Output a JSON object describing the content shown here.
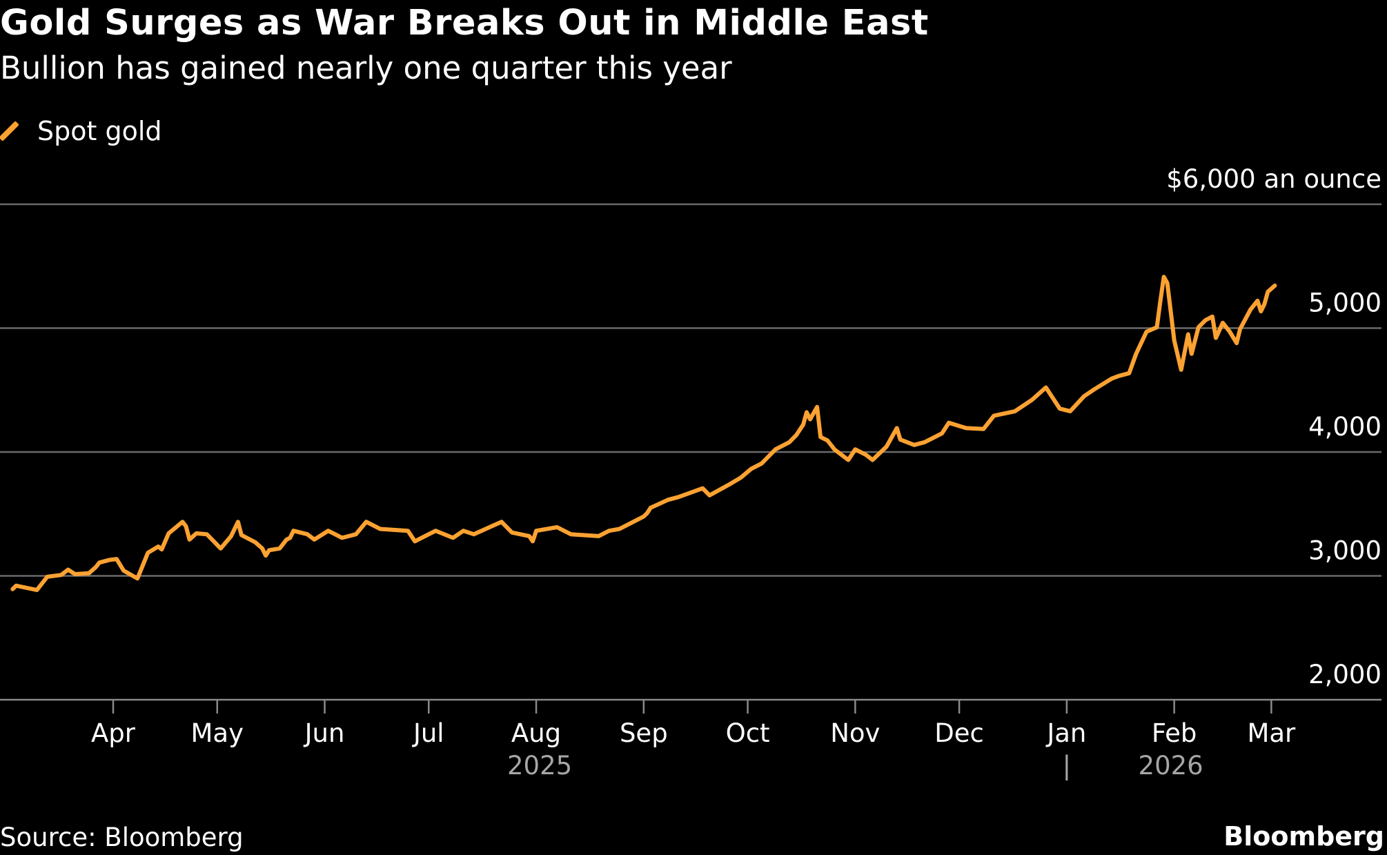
{
  "title": "Gold Surges as War Breaks Out in Middle East",
  "subtitle": "Bullion has gained nearly one quarter this year",
  "source": "Source: Bloomberg",
  "brand": "Bloomberg",
  "colors": {
    "background": "#000000",
    "series": "#FDA232",
    "grid": "#6b6b6b",
    "year_label": "#a6a6a6"
  },
  "chart_data": {
    "type": "line",
    "title": "Gold Surges as War Breaks Out in Middle East",
    "subtitle": "Bullion has gained nearly one quarter this year",
    "unit_label": "$6,000 an ounce",
    "ylim": [
      2000,
      6000
    ],
    "y_ticks": [
      {
        "value": 6000,
        "label": "$6,000 an ounce"
      },
      {
        "value": 5000,
        "label": "5,000"
      },
      {
        "value": 4000,
        "label": "4,000"
      },
      {
        "value": 3000,
        "label": "3,000"
      },
      {
        "value": 2000,
        "label": "2,000"
      }
    ],
    "x_ticks": [
      {
        "date": "2025-04-01",
        "label": "Apr"
      },
      {
        "date": "2025-05-01",
        "label": "May"
      },
      {
        "date": "2025-06-01",
        "label": "Jun"
      },
      {
        "date": "2025-07-01",
        "label": "Jul"
      },
      {
        "date": "2025-08-01",
        "label": "Aug"
      },
      {
        "date": "2025-09-01",
        "label": "Sep"
      },
      {
        "date": "2025-10-01",
        "label": "Oct"
      },
      {
        "date": "2025-11-01",
        "label": "Nov"
      },
      {
        "date": "2025-12-01",
        "label": "Dec"
      },
      {
        "date": "2026-01-01",
        "label": "Jan"
      },
      {
        "date": "2026-02-01",
        "label": "Feb"
      },
      {
        "date": "2026-03-01",
        "label": "Mar"
      }
    ],
    "year_labels": [
      {
        "date": "2025-08-02",
        "label": "2025"
      },
      {
        "date": "2026-01-01",
        "label": "|"
      },
      {
        "date": "2026-01-31",
        "label": "2026"
      }
    ],
    "grid": true,
    "legend_position": "top-left",
    "series": [
      {
        "name": "Spot gold",
        "color": "#FDA232",
        "x": [
          "2025-03-03",
          "2025-03-04",
          "2025-03-10",
          "2025-03-12",
          "2025-03-13",
          "2025-03-17",
          "2025-03-19",
          "2025-03-21",
          "2025-03-25",
          "2025-03-27",
          "2025-03-28",
          "2025-03-31",
          "2025-04-02",
          "2025-04-04",
          "2025-04-08",
          "2025-04-11",
          "2025-04-14",
          "2025-04-15",
          "2025-04-17",
          "2025-04-21",
          "2025-04-22",
          "2025-04-23",
          "2025-04-25",
          "2025-04-28",
          "2025-04-30",
          "2025-05-02",
          "2025-05-05",
          "2025-05-07",
          "2025-05-08",
          "2025-05-12",
          "2025-05-14",
          "2025-05-15",
          "2025-05-16",
          "2025-05-19",
          "2025-05-21",
          "2025-05-22",
          "2025-05-23",
          "2025-05-27",
          "2025-05-29",
          "2025-06-02",
          "2025-06-04",
          "2025-06-06",
          "2025-06-10",
          "2025-06-13",
          "2025-06-17",
          "2025-06-25",
          "2025-06-27",
          "2025-07-01",
          "2025-07-03",
          "2025-07-08",
          "2025-07-11",
          "2025-07-14",
          "2025-07-22",
          "2025-07-25",
          "2025-07-30",
          "2025-07-31",
          "2025-08-01",
          "2025-08-07",
          "2025-08-11",
          "2025-08-19",
          "2025-08-22",
          "2025-08-25",
          "2025-08-29",
          "2025-09-01",
          "2025-09-02",
          "2025-09-03",
          "2025-09-08",
          "2025-09-11",
          "2025-09-18",
          "2025-09-20",
          "2025-09-26",
          "2025-09-29",
          "2025-10-02",
          "2025-10-05",
          "2025-10-09",
          "2025-10-13",
          "2025-10-15",
          "2025-10-17",
          "2025-10-18",
          "2025-10-19",
          "2025-10-21",
          "2025-10-22",
          "2025-10-24",
          "2025-10-26",
          "2025-10-30",
          "2025-11-01",
          "2025-11-04",
          "2025-11-06",
          "2025-11-10",
          "2025-11-13",
          "2025-11-14",
          "2025-11-18",
          "2025-11-21",
          "2025-11-26",
          "2025-11-28",
          "2025-12-03",
          "2025-12-08",
          "2025-12-11",
          "2025-12-17",
          "2025-12-22",
          "2025-12-26",
          "2025-12-30",
          "2026-01-02",
          "2026-01-06",
          "2026-01-09",
          "2026-01-14",
          "2026-01-16",
          "2026-01-19",
          "2026-01-21",
          "2026-01-24",
          "2026-01-27",
          "2026-01-28",
          "2026-01-29",
          "2026-01-30",
          "2026-02-01",
          "2026-02-03",
          "2026-02-05",
          "2026-02-06",
          "2026-02-08",
          "2026-02-10",
          "2026-02-12",
          "2026-02-13",
          "2026-02-15",
          "2026-02-17",
          "2026-02-19",
          "2026-02-20",
          "2026-02-23",
          "2026-02-25",
          "2026-02-26",
          "2026-02-27",
          "2026-02-28",
          "2026-03-02"
        ],
        "y": [
          2893,
          2921,
          2886,
          2957,
          2993,
          3007,
          3050,
          3014,
          3021,
          3071,
          3107,
          3129,
          3136,
          3043,
          2979,
          3186,
          3236,
          3214,
          3343,
          3436,
          3400,
          3293,
          3343,
          3336,
          3279,
          3221,
          3321,
          3436,
          3329,
          3271,
          3221,
          3164,
          3207,
          3221,
          3293,
          3307,
          3364,
          3336,
          3293,
          3364,
          3336,
          3307,
          3336,
          3436,
          3379,
          3364,
          3279,
          3336,
          3364,
          3307,
          3364,
          3336,
          3436,
          3350,
          3321,
          3279,
          3364,
          3393,
          3336,
          3321,
          3364,
          3379,
          3436,
          3479,
          3507,
          3550,
          3614,
          3636,
          3707,
          3650,
          3743,
          3793,
          3864,
          3907,
          4021,
          4079,
          4136,
          4221,
          4321,
          4264,
          4364,
          4121,
          4093,
          4021,
          3936,
          4021,
          3979,
          3936,
          4043,
          4193,
          4100,
          4057,
          4079,
          4150,
          4236,
          4193,
          4186,
          4293,
          4328,
          4421,
          4521,
          4350,
          4329,
          4450,
          4507,
          4593,
          4614,
          4636,
          4793,
          4971,
          5007,
          5221,
          5414,
          5364,
          4900,
          4664,
          4950,
          4793,
          5007,
          5064,
          5093,
          4921,
          5043,
          4971,
          4879,
          4993,
          5150,
          5221,
          5136,
          5193,
          5293,
          5343
        ]
      }
    ]
  }
}
